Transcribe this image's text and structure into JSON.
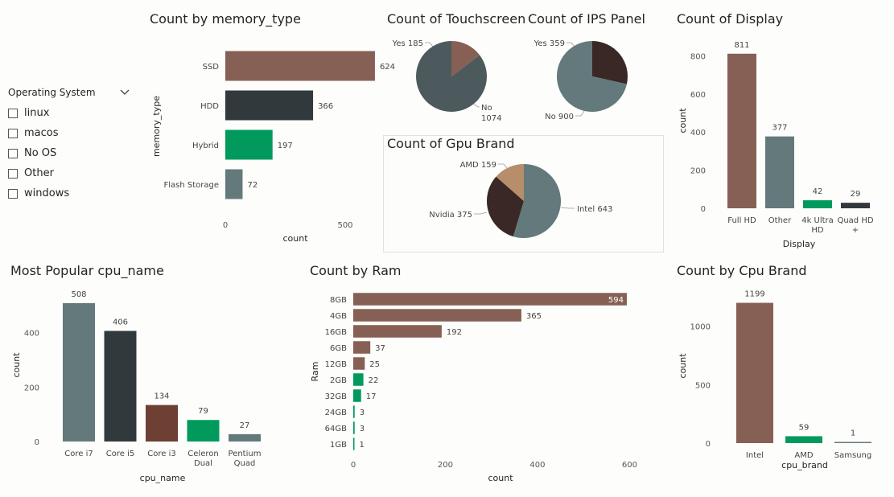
{
  "colors": {
    "brown": "#876055",
    "dark": "#32393c",
    "green": "#019a5c",
    "slate": "#64797c",
    "rust": "#6e3f33",
    "tan": "#b88d6b",
    "darkbrown": "#3a2826",
    "slatepie": "#4c595d"
  },
  "slicer": {
    "title": "Operating System",
    "chevron_icon": "chevron-down-icon",
    "items": [
      "linux",
      "macos",
      "No OS",
      "Other",
      "windows"
    ]
  },
  "chart_data": [
    {
      "id": "memory",
      "type": "bar",
      "orientation": "horizontal",
      "title": "Count by memory_type",
      "categories": [
        "SSD",
        "HDD",
        "Hybrid",
        "Flash Storage"
      ],
      "values": [
        624,
        366,
        197,
        72
      ],
      "data_labels": [
        "624",
        "366",
        "197",
        "72"
      ],
      "colors": [
        "#876055",
        "#32393c",
        "#019a5c",
        "#64797c"
      ],
      "xlabel": "count",
      "ylabel": "memory_type",
      "xticks": [
        "0",
        "500"
      ],
      "xlim": [
        0,
        700
      ]
    },
    {
      "id": "touch",
      "type": "pie",
      "title": "Count of Touchscreen",
      "labels": [
        "Yes 185",
        "No 1074"
      ],
      "values": [
        185,
        1074
      ],
      "colors": [
        "#876055",
        "#4c595d"
      ]
    },
    {
      "id": "ips",
      "type": "pie",
      "title": "Count of IPS Panel",
      "labels": [
        "Yes 359",
        "No 900"
      ],
      "values": [
        359,
        900
      ],
      "colors": [
        "#3a2826",
        "#64797c"
      ]
    },
    {
      "id": "gpu",
      "type": "pie",
      "title": "Count of Gpu Brand",
      "labels": [
        "Intel 643",
        "Nvidia 375",
        "AMD 159"
      ],
      "values": [
        643,
        375,
        159
      ],
      "colors": [
        "#64797c",
        "#3a2826",
        "#b88d6b"
      ]
    },
    {
      "id": "display",
      "type": "bar",
      "orientation": "vertical",
      "title": "Count of Display",
      "categories": [
        "Full HD",
        "Other",
        "4k Ultra HD",
        "Quad HD +"
      ],
      "values": [
        811,
        377,
        42,
        29
      ],
      "data_labels": [
        "811",
        "377",
        "42",
        "29"
      ],
      "colors": [
        "#876055",
        "#64797c",
        "#019a5c",
        "#32393c"
      ],
      "xlabel": "Display",
      "ylabel": "count",
      "yticks": [
        "0",
        "200",
        "400",
        "600",
        "800"
      ],
      "ylim": [
        0,
        800
      ]
    },
    {
      "id": "cpuname",
      "type": "bar",
      "orientation": "vertical",
      "title": "Most Popular cpu_name",
      "categories": [
        "Core i7",
        "Core i5",
        "Core i3",
        "Celeron Dual",
        "Pentium Quad"
      ],
      "values": [
        508,
        406,
        134,
        79,
        27
      ],
      "data_labels": [
        "508",
        "406",
        "134",
        "79",
        "27"
      ],
      "colors": [
        "#64797c",
        "#32393c",
        "#6e3f33",
        "#019a5c",
        "#64797c"
      ],
      "xlabel": "cpu_name",
      "ylabel": "count",
      "yticks": [
        "0",
        "200",
        "400"
      ],
      "ylim": [
        0,
        400
      ]
    },
    {
      "id": "ram",
      "type": "bar",
      "orientation": "horizontal",
      "title": "Count by Ram",
      "categories": [
        "8GB",
        "4GB",
        "16GB",
        "6GB",
        "12GB",
        "2GB",
        "32GB",
        "24GB",
        "64GB",
        "1GB"
      ],
      "values": [
        594,
        365,
        192,
        37,
        25,
        22,
        17,
        3,
        3,
        1
      ],
      "data_labels": [
        "594",
        "365",
        "192",
        "37",
        "25",
        "22",
        "17",
        "3",
        "3",
        "1"
      ],
      "colors": [
        "#876055",
        "#876055",
        "#876055",
        "#876055",
        "#876055",
        "#019a5c",
        "#019a5c",
        "#019a5c",
        "#019a5c",
        "#019a5c"
      ],
      "xlabel": "count",
      "ylabel": "Ram",
      "xticks": [
        "0",
        "200",
        "400",
        "600"
      ],
      "xlim": [
        0,
        600
      ]
    },
    {
      "id": "cpubrand",
      "type": "bar",
      "orientation": "vertical",
      "title": "Count by Cpu Brand",
      "categories": [
        "Intel",
        "AMD",
        "Samsung"
      ],
      "values": [
        1199,
        59,
        1
      ],
      "data_labels": [
        "1199",
        "59",
        "1"
      ],
      "colors": [
        "#876055",
        "#019a5c",
        "#64797c"
      ],
      "xlabel": "cpu_brand",
      "ylabel": "count",
      "yticks": [
        "0",
        "500",
        "1000"
      ],
      "ylim": [
        0,
        1000
      ]
    }
  ]
}
